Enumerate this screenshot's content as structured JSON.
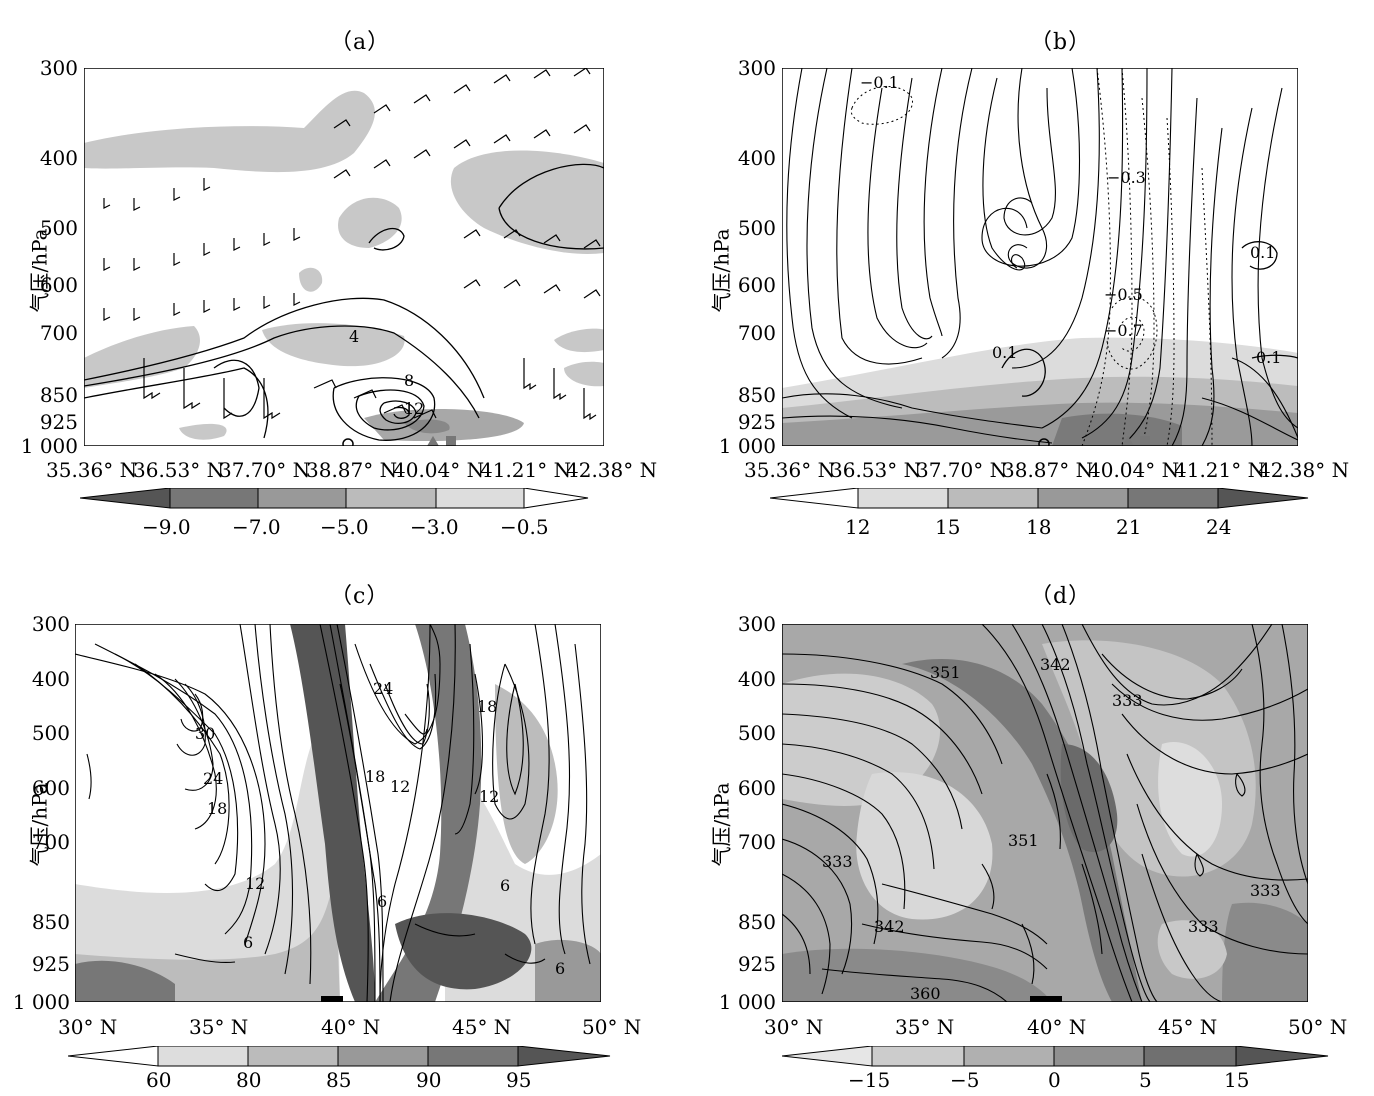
{
  "figure": {
    "panels": [
      {
        "id": "a",
        "title": "（a）",
        "ylabel": "气压/hPa",
        "yticks": [
          "300",
          "400",
          "500",
          "600",
          "700",
          "850",
          "925",
          "1 000"
        ],
        "xticks": [
          "35.36° N",
          "36.53° N",
          "37.70° N",
          "38.87° N",
          "40.04° N",
          "41.21° N",
          "42.38° N"
        ],
        "contour_labels": [
          "4",
          "8",
          "12"
        ],
        "colorbar": {
          "labels": [
            "−9.0",
            "−7.0",
            "−5.0",
            "−3.0",
            "−0.5"
          ],
          "colors": [
            "#555555",
            "#777777",
            "#999999",
            "#bbbbbb",
            "#dddddd",
            "#ffffff"
          ],
          "direction": "dark-to-light"
        },
        "markers": [
          "circle",
          "triangle",
          "square"
        ]
      },
      {
        "id": "b",
        "title": "（b）",
        "ylabel": "气压/hPa",
        "yticks": [
          "300",
          "400",
          "500",
          "600",
          "700",
          "850",
          "925",
          "1 000"
        ],
        "xticks": [
          "35.36° N",
          "36.53° N",
          "37.70° N",
          "38.87° N",
          "40.04° N",
          "41.21° N",
          "42.38° N"
        ],
        "contour_labels": [
          "−0.1",
          "−0.3",
          "0.1",
          "−0.5",
          "−0.7",
          "0.1",
          "0.1"
        ],
        "colorbar": {
          "labels": [
            "12",
            "15",
            "18",
            "21",
            "24"
          ],
          "colors": [
            "#ffffff",
            "#dddddd",
            "#bbbbbb",
            "#999999",
            "#777777",
            "#555555"
          ],
          "direction": "light-to-dark"
        },
        "markers": [
          "circle",
          "triangle",
          "square"
        ]
      },
      {
        "id": "c",
        "title": "（c）",
        "ylabel": "气压/hPa",
        "yticks": [
          "300",
          "400",
          "500",
          "600",
          "700",
          "850",
          "925",
          "1 000"
        ],
        "xticks": [
          "30° N",
          "35° N",
          "40° N",
          "45° N",
          "50° N"
        ],
        "contour_labels": [
          "24",
          "30",
          "24",
          "18",
          "18",
          "12",
          "18",
          "12",
          "12",
          "6",
          "6",
          "6",
          "6"
        ],
        "colorbar": {
          "labels": [
            "60",
            "80",
            "85",
            "90",
            "95"
          ],
          "colors": [
            "#ffffff",
            "#dddddd",
            "#bbbbbb",
            "#999999",
            "#777777",
            "#555555"
          ],
          "direction": "light-to-dark"
        },
        "markers": [
          "bar"
        ]
      },
      {
        "id": "d",
        "title": "（d）",
        "ylabel": "气压/hPa",
        "yticks": [
          "300",
          "400",
          "500",
          "600",
          "700",
          "850",
          "925",
          "1 000"
        ],
        "xticks": [
          "30° N",
          "35° N",
          "40° N",
          "45° N",
          "50° N"
        ],
        "contour_labels": [
          "351",
          "342",
          "333",
          "351",
          "333",
          "342",
          "333",
          "333",
          "360"
        ],
        "colorbar": {
          "labels": [
            "−15",
            "−5",
            "0",
            "5",
            "15"
          ],
          "colors": [
            "#e6e6e6",
            "#cccccc",
            "#b0b0b0",
            "#909090",
            "#707070",
            "#555555"
          ],
          "direction": "light-to-dark"
        },
        "markers": [
          "bar"
        ]
      }
    ]
  },
  "chart_data": [
    {
      "panel": "a",
      "type": "contour",
      "ylabel": "气压/hPa",
      "yticks": [
        300,
        400,
        500,
        600,
        700,
        850,
        925,
        1000
      ],
      "xticks": [
        "35.36° N",
        "36.53° N",
        "37.70° N",
        "38.87° N",
        "40.04° N",
        "41.21° N",
        "42.38° N"
      ],
      "contours": [
        4,
        8,
        12
      ],
      "shading_levels": [
        -9.0,
        -7.0,
        -5.0,
        -3.0,
        -0.5
      ],
      "overlay": "wind barbs"
    },
    {
      "panel": "b",
      "type": "contour",
      "ylabel": "气压/hPa",
      "yticks": [
        300,
        400,
        500,
        600,
        700,
        850,
        925,
        1000
      ],
      "xticks": [
        "35.36° N",
        "36.53° N",
        "37.70° N",
        "38.87° N",
        "40.04° N",
        "41.21° N",
        "42.38° N"
      ],
      "contours": [
        -0.1,
        -0.3,
        -0.5,
        -0.7,
        0.1
      ],
      "shading_levels": [
        12,
        15,
        18,
        21,
        24
      ],
      "overlay": "streamlines"
    },
    {
      "panel": "c",
      "type": "contour",
      "ylabel": "气压/hPa",
      "yticks": [
        300,
        400,
        500,
        600,
        700,
        850,
        925,
        1000
      ],
      "xticks": [
        "30° N",
        "35° N",
        "40° N",
        "45° N",
        "50° N"
      ],
      "contours": [
        6,
        12,
        18,
        24,
        30
      ],
      "shading_levels": [
        60,
        80,
        85,
        90,
        95
      ]
    },
    {
      "panel": "d",
      "type": "contour",
      "ylabel": "气压/hPa",
      "yticks": [
        300,
        400,
        500,
        600,
        700,
        850,
        925,
        1000
      ],
      "xticks": [
        "30° N",
        "35° N",
        "40° N",
        "45° N",
        "50° N"
      ],
      "contours": [
        333,
        342,
        351,
        360
      ],
      "shading_levels": [
        -15,
        -5,
        0,
        5,
        15
      ]
    }
  ]
}
